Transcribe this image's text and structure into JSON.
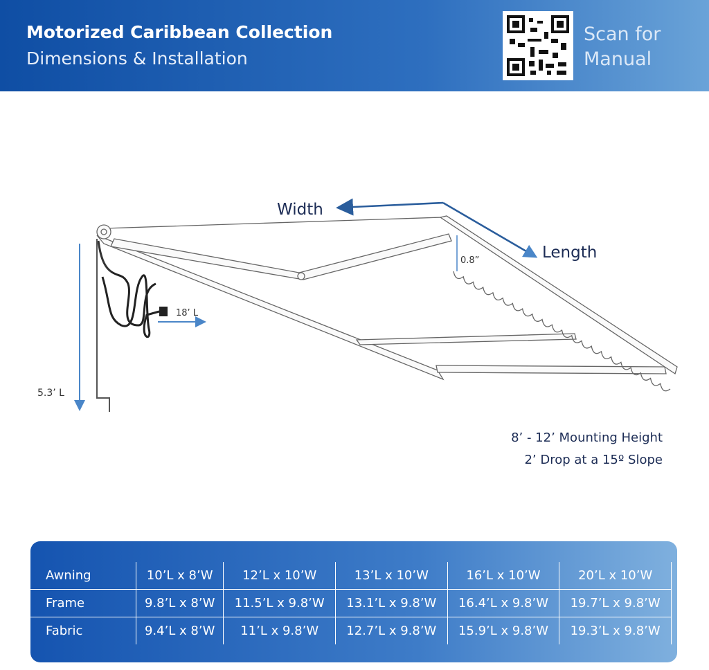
{
  "header": {
    "title": "Motorized Caribbean Collection",
    "subtitle": "Dimensions & Installation",
    "qr_caption": [
      "Scan for",
      "Manual"
    ]
  },
  "diagram": {
    "width_label": "Width",
    "length_label": "Length",
    "drop_label": "0.8”",
    "cord_label": "18’ L",
    "height_label": "5.3’ L"
  },
  "notes": [
    "8’ - 12’ Mounting Height",
    "2’ Drop at a 15º Slope"
  ],
  "table": {
    "rows": [
      [
        "Awning",
        "10’L x 8’W",
        "12’L x 10’W",
        "13’L x 10’W",
        "16’L x 10’W",
        "20’L x 10’W"
      ],
      [
        "Frame",
        "9.8’L x 8’W",
        "11.5’L x 9.8’W",
        "13.1’L x 9.8’W",
        "16.4’L x 9.8’W",
        "19.7’L x 9.8’W"
      ],
      [
        "Fabric",
        "9.4’L x 8’W",
        "11’L x 9.8’W",
        "12.7’L x 9.8’W",
        "15.9’L x 9.8’W",
        "19.3’L x 9.8’W"
      ]
    ]
  }
}
